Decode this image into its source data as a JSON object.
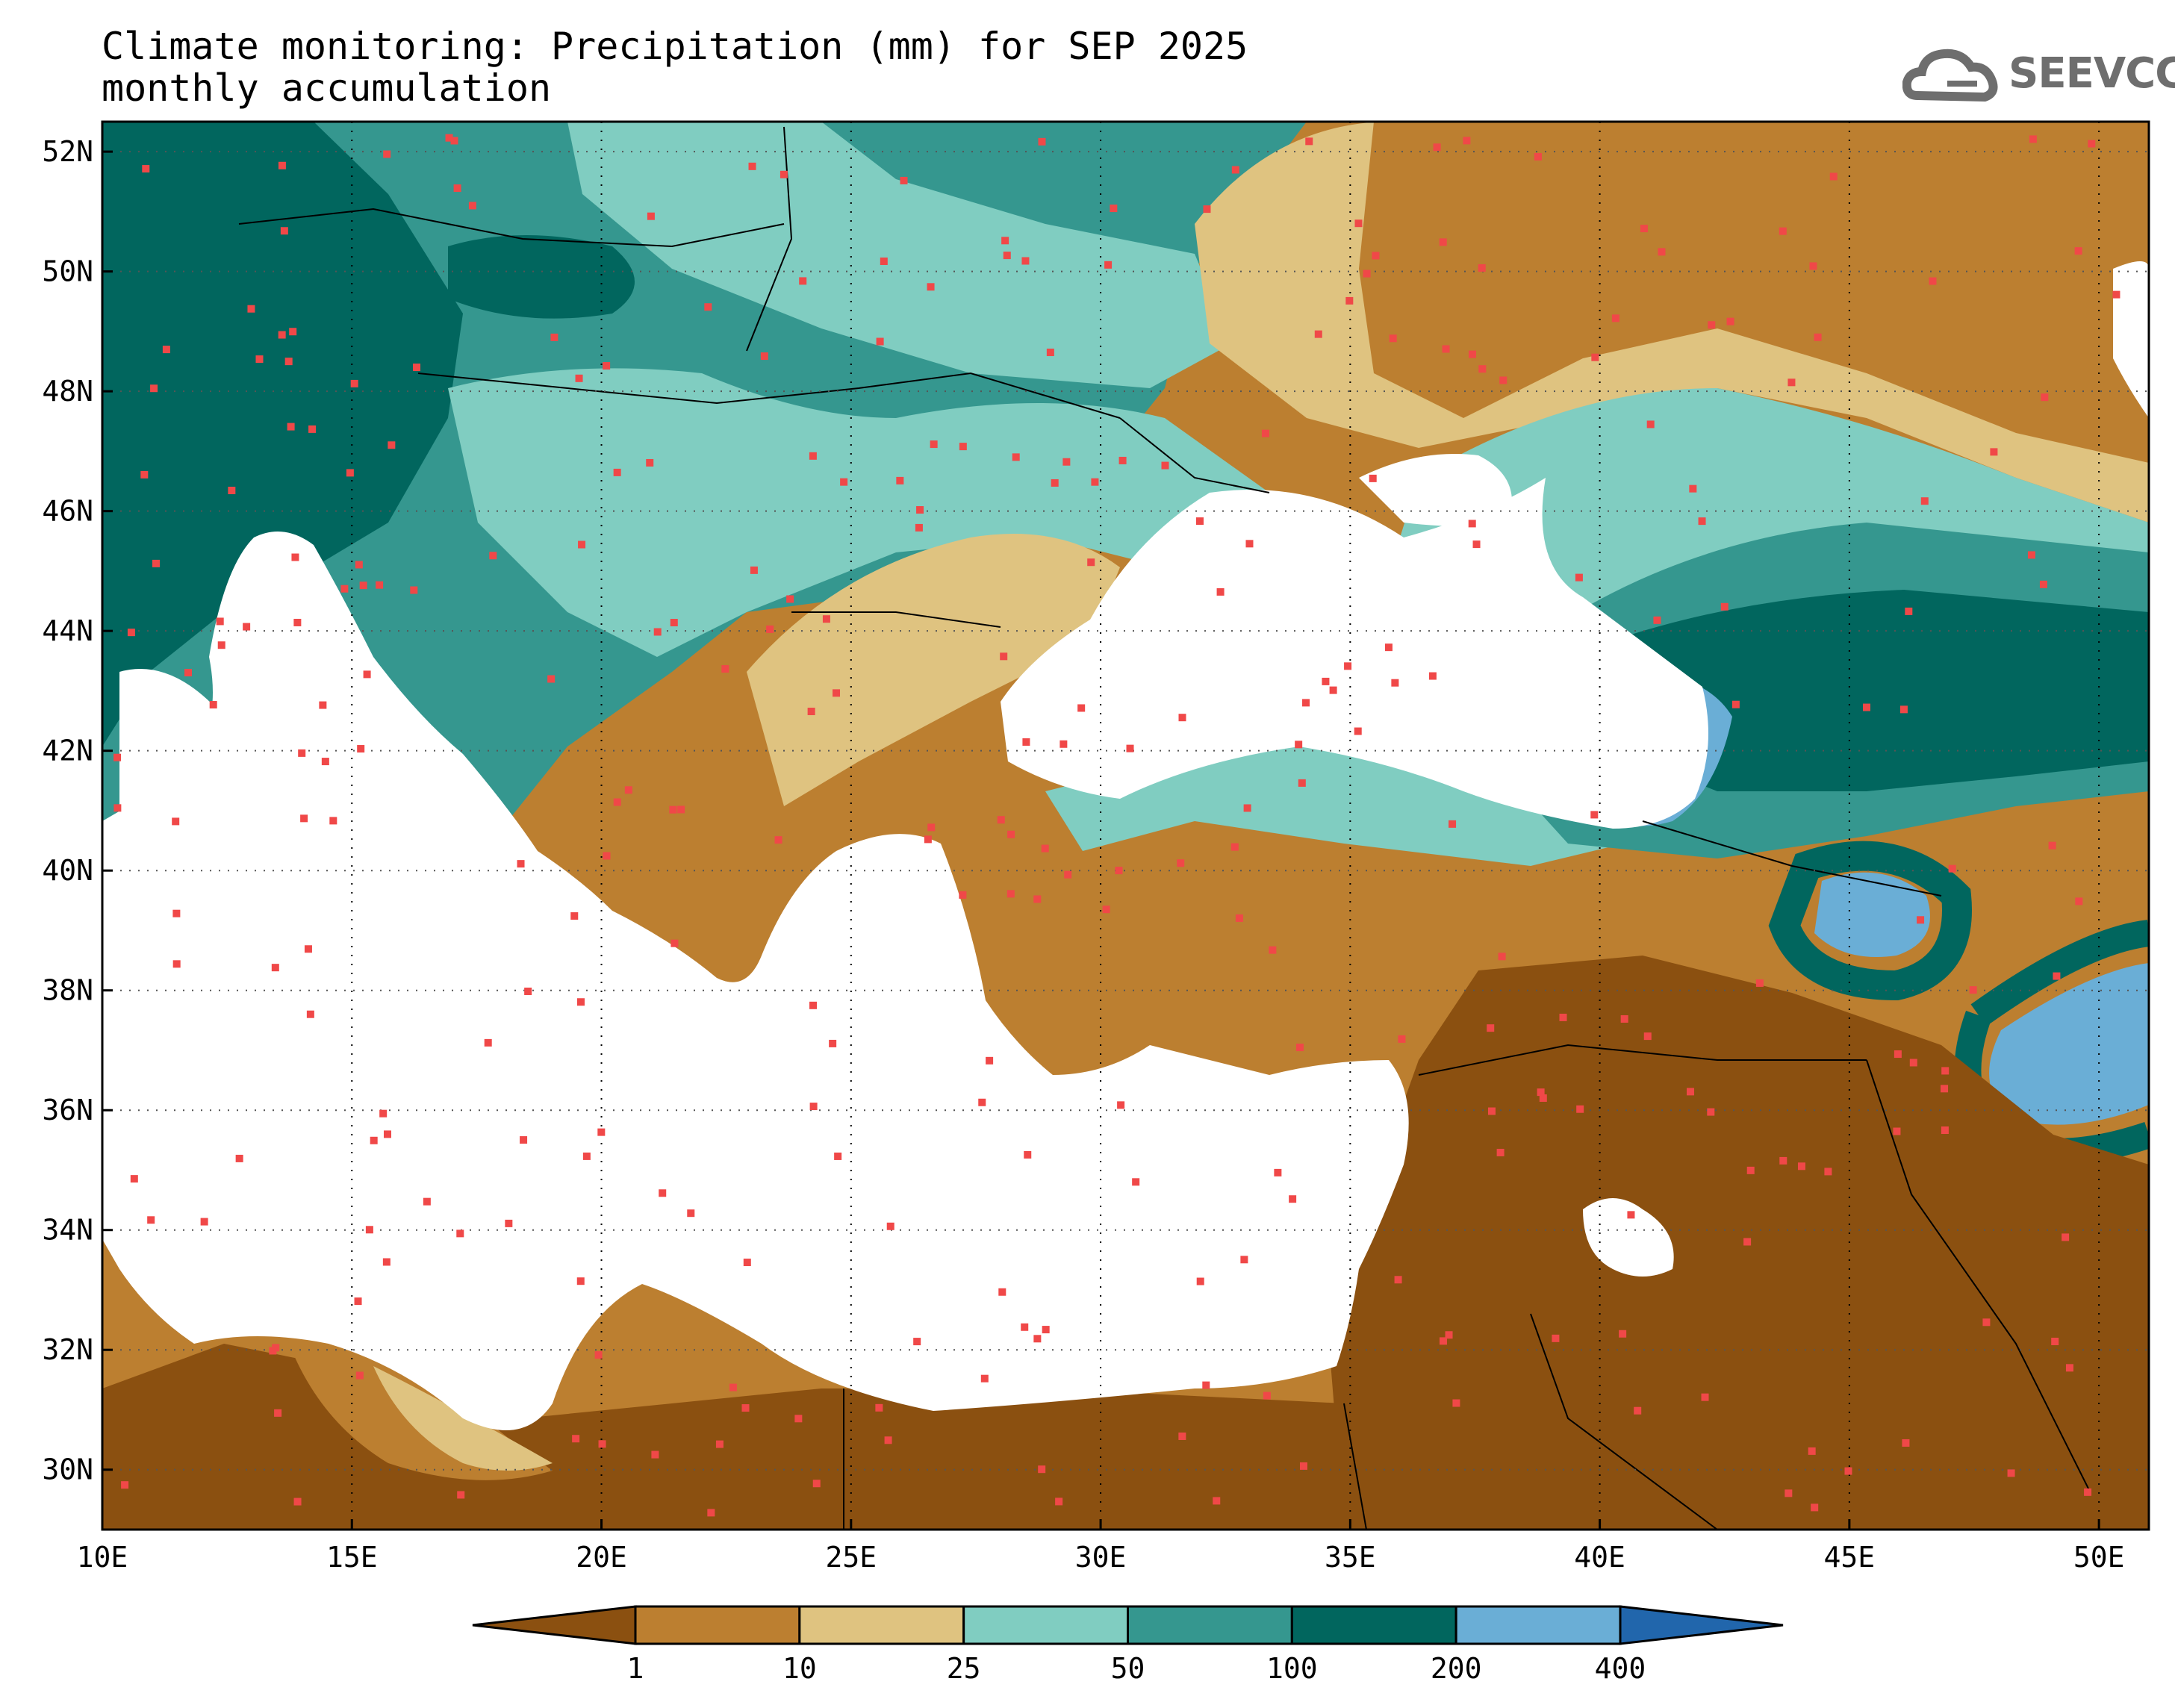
{
  "title": {
    "line1": "Climate monitoring: Precipitation (mm) for SEP 2025",
    "line2": "monthly accumulation"
  },
  "logo": {
    "text": "SEEVCCC",
    "icon": "cloud-icon"
  },
  "map": {
    "lon_range": [
      10,
      51
    ],
    "lat_range": [
      29,
      52.5
    ],
    "lat_ticks": [
      {
        "value": 52,
        "label": "52N"
      },
      {
        "value": 50,
        "label": "50N"
      },
      {
        "value": 48,
        "label": "48N"
      },
      {
        "value": 46,
        "label": "46N"
      },
      {
        "value": 44,
        "label": "44N"
      },
      {
        "value": 42,
        "label": "42N"
      },
      {
        "value": 40,
        "label": "40N"
      },
      {
        "value": 38,
        "label": "38N"
      },
      {
        "value": 36,
        "label": "36N"
      },
      {
        "value": 34,
        "label": "34N"
      },
      {
        "value": 32,
        "label": "32N"
      },
      {
        "value": 30,
        "label": "30N"
      }
    ],
    "lon_ticks": [
      {
        "value": 10,
        "label": "10E"
      },
      {
        "value": 15,
        "label": "15E"
      },
      {
        "value": 20,
        "label": "20E"
      },
      {
        "value": 25,
        "label": "25E"
      },
      {
        "value": 30,
        "label": "30E"
      },
      {
        "value": 35,
        "label": "35E"
      },
      {
        "value": 40,
        "label": "40E"
      },
      {
        "value": 45,
        "label": "45E"
      },
      {
        "value": 50,
        "label": "50E"
      }
    ],
    "grid": "dotted"
  },
  "colorbar": {
    "labels": [
      "1",
      "10",
      "25",
      "50",
      "100",
      "200",
      "400"
    ],
    "colors": [
      "#8B5010",
      "#BC7F30",
      "#DFC380",
      "#80CDC1",
      "#35978F",
      "#01665E",
      "#6AAED6",
      "#2166AC"
    ]
  },
  "chart_data": {
    "type": "heatmap",
    "variable": "Precipitation (mm)",
    "period": "SEP 2025",
    "levels": [
      1,
      10,
      25,
      50,
      100,
      200,
      400
    ]
  }
}
